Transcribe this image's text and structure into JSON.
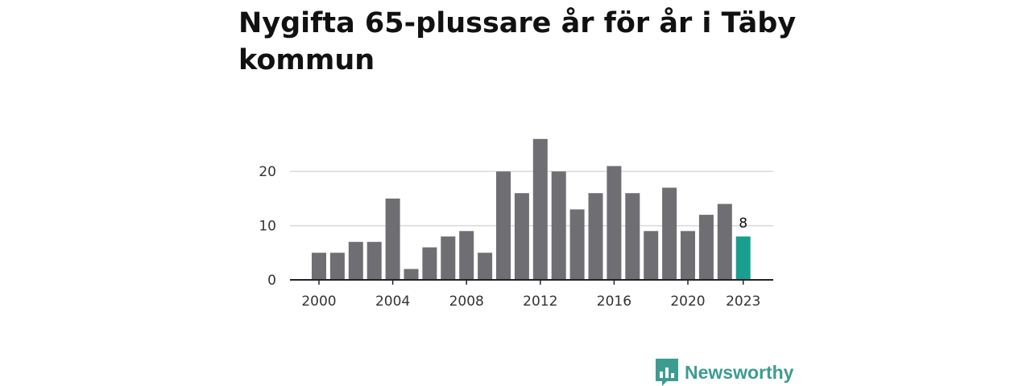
{
  "colors": {
    "bar": "#6f6e73",
    "highlight": "#1a9e8f",
    "grid": "#d9d9d9",
    "axis": "#222222",
    "brand": "#3d9c92"
  },
  "brand": {
    "name": "Newsworthy",
    "icon": "newsworthy-logo-icon"
  },
  "chart_data": {
    "type": "bar",
    "title": "Nygifta 65-plussare år för år i Täby kommun",
    "xlabel": "",
    "ylabel": "",
    "categories": [
      "2000",
      "2001",
      "2002",
      "2003",
      "2004",
      "2005",
      "2006",
      "2007",
      "2008",
      "2009",
      "2010",
      "2011",
      "2012",
      "2013",
      "2014",
      "2015",
      "2016",
      "2017",
      "2018",
      "2019",
      "2020",
      "2021",
      "2022",
      "2023"
    ],
    "values": [
      5,
      5,
      7,
      7,
      15,
      2,
      6,
      8,
      9,
      5,
      20,
      16,
      26,
      20,
      13,
      16,
      21,
      16,
      9,
      17,
      9,
      12,
      14,
      8
    ],
    "highlight_index": 23,
    "highlight_label": "8",
    "ylim": [
      0,
      26
    ],
    "yticks": [
      {
        "value": 0,
        "label": "0"
      },
      {
        "value": 10,
        "label": "10"
      },
      {
        "value": 20,
        "label": "20"
      }
    ],
    "xticks": [
      {
        "index": 0,
        "label": "2000"
      },
      {
        "index": 4,
        "label": "2004"
      },
      {
        "index": 8,
        "label": "2008"
      },
      {
        "index": 12,
        "label": "2012"
      },
      {
        "index": 16,
        "label": "2016"
      },
      {
        "index": 20,
        "label": "2020"
      },
      {
        "index": 23,
        "label": "2023"
      }
    ],
    "grid": true
  }
}
